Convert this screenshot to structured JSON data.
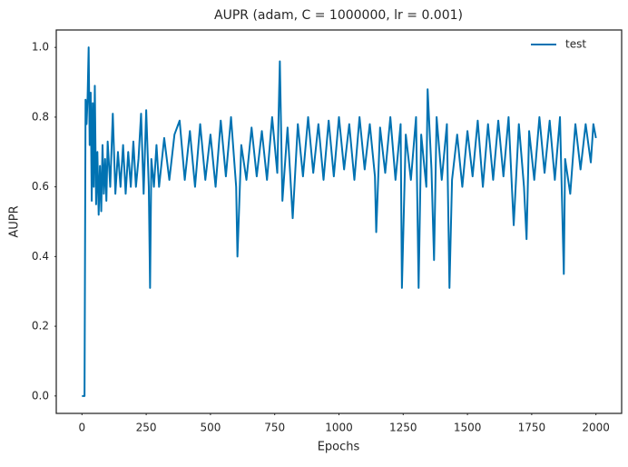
{
  "chart_data": {
    "type": "line",
    "title": "AUPR (adam, C = 1000000, lr = 0.001)",
    "x_label": "Epochs",
    "y_label": "AUPR",
    "x": [
      0,
      8,
      10,
      14,
      18,
      22,
      26,
      30,
      34,
      38,
      42,
      46,
      50,
      55,
      60,
      65,
      70,
      75,
      80,
      85,
      90,
      95,
      100,
      110,
      120,
      130,
      140,
      150,
      160,
      170,
      180,
      190,
      200,
      210,
      220,
      230,
      240,
      250,
      260,
      265,
      270,
      280,
      290,
      300,
      320,
      340,
      360,
      380,
      400,
      420,
      440,
      460,
      480,
      500,
      520,
      540,
      560,
      580,
      600,
      605,
      620,
      640,
      660,
      680,
      700,
      720,
      740,
      760,
      770,
      780,
      800,
      820,
      840,
      860,
      880,
      900,
      920,
      940,
      960,
      980,
      1000,
      1020,
      1040,
      1060,
      1080,
      1100,
      1120,
      1140,
      1145,
      1160,
      1180,
      1200,
      1220,
      1240,
      1245,
      1260,
      1280,
      1300,
      1310,
      1320,
      1340,
      1345,
      1360,
      1370,
      1380,
      1400,
      1420,
      1430,
      1440,
      1460,
      1480,
      1500,
      1520,
      1540,
      1560,
      1580,
      1600,
      1620,
      1640,
      1660,
      1680,
      1700,
      1720,
      1730,
      1740,
      1760,
      1780,
      1800,
      1820,
      1840,
      1860,
      1875,
      1880,
      1900,
      1920,
      1940,
      1960,
      1980,
      1990,
      2000
    ],
    "series": [
      {
        "name": "test",
        "color": "#0072b2",
        "values": [
          0.0,
          0.0,
          0.0,
          0.85,
          0.78,
          0.86,
          1.0,
          0.72,
          0.87,
          0.56,
          0.84,
          0.6,
          0.89,
          0.55,
          0.7,
          0.52,
          0.66,
          0.53,
          0.72,
          0.58,
          0.68,
          0.56,
          0.73,
          0.6,
          0.81,
          0.58,
          0.7,
          0.6,
          0.72,
          0.58,
          0.7,
          0.6,
          0.73,
          0.6,
          0.68,
          0.81,
          0.58,
          0.82,
          0.6,
          0.31,
          0.68,
          0.6,
          0.72,
          0.6,
          0.74,
          0.62,
          0.75,
          0.79,
          0.62,
          0.76,
          0.6,
          0.78,
          0.62,
          0.75,
          0.6,
          0.79,
          0.63,
          0.8,
          0.6,
          0.4,
          0.72,
          0.62,
          0.77,
          0.63,
          0.76,
          0.62,
          0.8,
          0.64,
          0.96,
          0.56,
          0.77,
          0.51,
          0.78,
          0.63,
          0.8,
          0.64,
          0.78,
          0.62,
          0.79,
          0.63,
          0.8,
          0.65,
          0.78,
          0.62,
          0.8,
          0.65,
          0.78,
          0.63,
          0.47,
          0.77,
          0.64,
          0.8,
          0.62,
          0.78,
          0.31,
          0.75,
          0.62,
          0.8,
          0.31,
          0.75,
          0.6,
          0.88,
          0.65,
          0.39,
          0.8,
          0.62,
          0.78,
          0.31,
          0.62,
          0.75,
          0.6,
          0.76,
          0.63,
          0.79,
          0.6,
          0.78,
          0.62,
          0.79,
          0.63,
          0.8,
          0.49,
          0.78,
          0.6,
          0.45,
          0.76,
          0.62,
          0.8,
          0.64,
          0.79,
          0.62,
          0.8,
          0.35,
          0.68,
          0.58,
          0.78,
          0.65,
          0.78,
          0.67,
          0.78,
          0.74
        ]
      }
    ],
    "xlim": [
      -100,
      2100
    ],
    "ylim": [
      -0.05,
      1.05
    ],
    "xticks": [
      0,
      250,
      500,
      750,
      1000,
      1250,
      1500,
      1750,
      2000
    ],
    "yticks": [
      {
        "value": 0,
        "label": "0.0"
      },
      {
        "value": 0.2,
        "label": "0.2"
      },
      {
        "value": 0.4,
        "label": "0.4"
      },
      {
        "value": 0.6,
        "label": "0.6"
      },
      {
        "value": 0.8,
        "label": "0.8"
      },
      {
        "value": 1,
        "label": "1.0"
      }
    ],
    "grid": false,
    "legend": "upper right"
  }
}
